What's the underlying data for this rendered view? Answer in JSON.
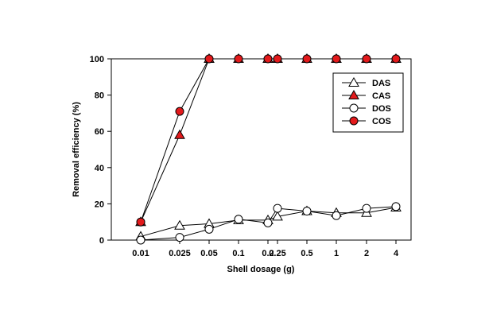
{
  "chart_data": {
    "type": "line",
    "title": "",
    "xlabel": "Shell dosage (g)",
    "ylabel": "Removal efficiency (%)",
    "x_tick_labels": [
      "0.01",
      "0.025",
      "0.05",
      "0.1",
      "0.2",
      "0.25",
      "0.5",
      "1",
      "2",
      "4"
    ],
    "y_ticks": [
      "0",
      "20",
      "40",
      "60",
      "80",
      "100"
    ],
    "ylim": [
      0,
      100
    ],
    "grid": false,
    "legend_position": "top-right",
    "series": [
      {
        "name": "DAS",
        "marker": "triangle",
        "color": "#ffffff",
        "x": [
          "0.01",
          "0.025",
          "0.05",
          "0.1",
          "0.2",
          "0.25",
          "0.5",
          "1",
          "2",
          "4"
        ],
        "values": [
          2,
          8,
          9,
          11,
          11,
          13,
          16,
          15,
          15,
          18
        ]
      },
      {
        "name": "CAS",
        "marker": "triangle",
        "color": "#e31a1c",
        "x": [
          "0.01",
          "0.025",
          "0.05",
          "0.1",
          "0.2",
          "0.25",
          "0.5",
          "1",
          "2",
          "4"
        ],
        "values": [
          10,
          58,
          100,
          100,
          100,
          100,
          100,
          100,
          100,
          100
        ]
      },
      {
        "name": "DOS",
        "marker": "circle",
        "color": "#ffffff",
        "x": [
          "0.01",
          "0.025",
          "0.05",
          "0.1",
          "0.2",
          "0.25",
          "0.5",
          "1",
          "2",
          "4"
        ],
        "values": [
          0,
          1.5,
          6,
          11.5,
          9.5,
          17.5,
          16,
          13.5,
          17.5,
          18.5
        ]
      },
      {
        "name": "COS",
        "marker": "circle",
        "color": "#e31a1c",
        "x": [
          "0.01",
          "0.025",
          "0.05",
          "0.1",
          "0.2",
          "0.25",
          "0.5",
          "1",
          "2",
          "4"
        ],
        "values": [
          10,
          71,
          100,
          100,
          100,
          100,
          100,
          100,
          100,
          100
        ]
      }
    ]
  }
}
